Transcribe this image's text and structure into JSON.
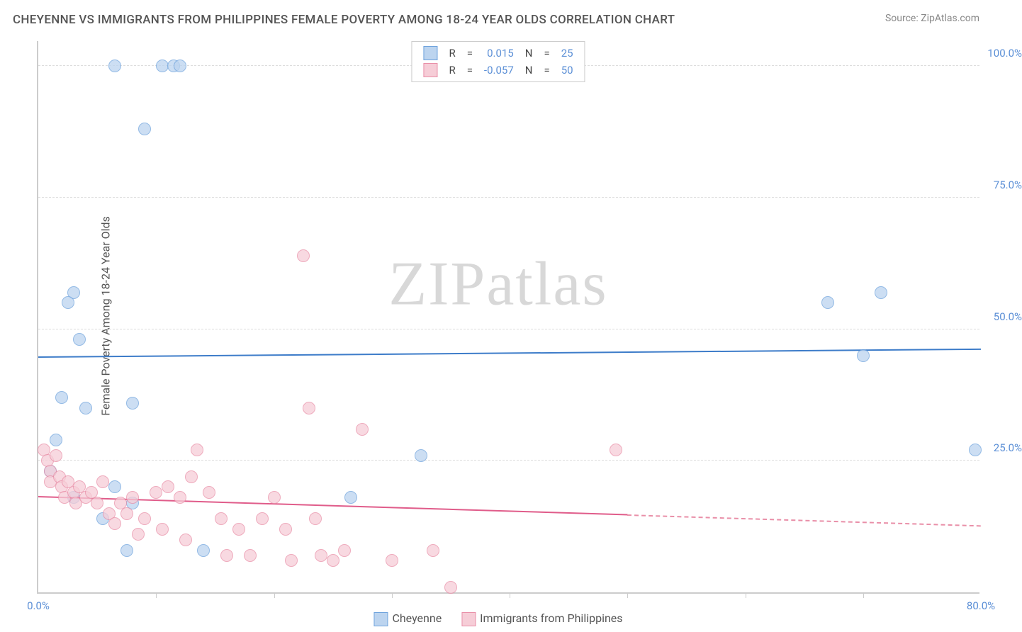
{
  "title": "CHEYENNE VS IMMIGRANTS FROM PHILIPPINES FEMALE POVERTY AMONG 18-24 YEAR OLDS CORRELATION CHART",
  "source": "Source: ZipAtlas.com",
  "ylabel": "Female Poverty Among 18-24 Year Olds",
  "watermark_a": "ZIP",
  "watermark_b": "atlas",
  "chart": {
    "type": "scatter",
    "xlim": [
      0,
      80
    ],
    "ylim": [
      0,
      105
    ],
    "xtick_labels": [
      {
        "v": 0,
        "label": "0.0%"
      },
      {
        "v": 80,
        "label": "80.0%"
      }
    ],
    "xtick_marks": [
      10,
      20,
      30,
      40,
      50,
      60,
      70
    ],
    "ytick_labels": [
      {
        "v": 25,
        "label": "25.0%"
      },
      {
        "v": 50,
        "label": "50.0%"
      },
      {
        "v": 75,
        "label": "75.0%"
      },
      {
        "v": 100,
        "label": "100.0%"
      }
    ],
    "grid_y": [
      25,
      50,
      75,
      100
    ],
    "grid_color": "#dddddd",
    "background_color": "#ffffff",
    "marker_size": 18,
    "series": [
      {
        "name": "Cheyenne",
        "color_fill": "#bcd4ef",
        "color_stroke": "#6fa3dd",
        "R": "0.015",
        "N": "25",
        "trend": {
          "y_at_x0": 44.5,
          "y_at_x80": 46.0,
          "solid_until_x": 80,
          "color": "#3d7cc9"
        },
        "points": [
          {
            "x": 6.5,
            "y": 100
          },
          {
            "x": 10.5,
            "y": 100
          },
          {
            "x": 11.5,
            "y": 100
          },
          {
            "x": 12.0,
            "y": 100
          },
          {
            "x": 9.0,
            "y": 88
          },
          {
            "x": 3.0,
            "y": 57
          },
          {
            "x": 2.5,
            "y": 55
          },
          {
            "x": 3.5,
            "y": 48
          },
          {
            "x": 2.0,
            "y": 37
          },
          {
            "x": 4.0,
            "y": 35
          },
          {
            "x": 8.0,
            "y": 36
          },
          {
            "x": 1.5,
            "y": 29
          },
          {
            "x": 1.0,
            "y": 23
          },
          {
            "x": 6.5,
            "y": 20
          },
          {
            "x": 8.0,
            "y": 17
          },
          {
            "x": 7.5,
            "y": 8
          },
          {
            "x": 14.0,
            "y": 8
          },
          {
            "x": 26.5,
            "y": 18
          },
          {
            "x": 32.5,
            "y": 26
          },
          {
            "x": 67.0,
            "y": 55
          },
          {
            "x": 71.5,
            "y": 57
          },
          {
            "x": 70.0,
            "y": 45
          },
          {
            "x": 79.5,
            "y": 27
          },
          {
            "x": 5.5,
            "y": 14
          },
          {
            "x": 3.0,
            "y": 18
          }
        ]
      },
      {
        "name": "Immigrants from Philippines",
        "color_fill": "#f6cdd7",
        "color_stroke": "#e98fa8",
        "R": "-0.057",
        "N": "50",
        "trend": {
          "y_at_x0": 18.0,
          "y_at_x80": 12.5,
          "solid_until_x": 50,
          "color": "#e05c8a"
        },
        "points": [
          {
            "x": 0.5,
            "y": 27
          },
          {
            "x": 0.8,
            "y": 25
          },
          {
            "x": 1.0,
            "y": 23
          },
          {
            "x": 1.0,
            "y": 21
          },
          {
            "x": 1.5,
            "y": 26
          },
          {
            "x": 1.8,
            "y": 22
          },
          {
            "x": 2.0,
            "y": 20
          },
          {
            "x": 2.2,
            "y": 18
          },
          {
            "x": 2.5,
            "y": 21
          },
          {
            "x": 3.0,
            "y": 19
          },
          {
            "x": 3.2,
            "y": 17
          },
          {
            "x": 3.5,
            "y": 20
          },
          {
            "x": 4.0,
            "y": 18
          },
          {
            "x": 4.5,
            "y": 19
          },
          {
            "x": 5.0,
            "y": 17
          },
          {
            "x": 5.5,
            "y": 21
          },
          {
            "x": 6.0,
            "y": 15
          },
          {
            "x": 6.5,
            "y": 13
          },
          {
            "x": 7.0,
            "y": 17
          },
          {
            "x": 7.5,
            "y": 15
          },
          {
            "x": 8.0,
            "y": 18
          },
          {
            "x": 8.5,
            "y": 11
          },
          {
            "x": 9.0,
            "y": 14
          },
          {
            "x": 10.0,
            "y": 19
          },
          {
            "x": 10.5,
            "y": 12
          },
          {
            "x": 11.0,
            "y": 20
          },
          {
            "x": 12.0,
            "y": 18
          },
          {
            "x": 12.5,
            "y": 10
          },
          {
            "x": 13.0,
            "y": 22
          },
          {
            "x": 13.5,
            "y": 27
          },
          {
            "x": 14.5,
            "y": 19
          },
          {
            "x": 15.5,
            "y": 14
          },
          {
            "x": 16.0,
            "y": 7
          },
          {
            "x": 17.0,
            "y": 12
          },
          {
            "x": 18.0,
            "y": 7
          },
          {
            "x": 19.0,
            "y": 14
          },
          {
            "x": 20.0,
            "y": 18
          },
          {
            "x": 21.0,
            "y": 12
          },
          {
            "x": 21.5,
            "y": 6
          },
          {
            "x": 23.0,
            "y": 35
          },
          {
            "x": 23.5,
            "y": 14
          },
          {
            "x": 24.0,
            "y": 7
          },
          {
            "x": 25.0,
            "y": 6
          },
          {
            "x": 26.0,
            "y": 8
          },
          {
            "x": 27.5,
            "y": 31
          },
          {
            "x": 22.5,
            "y": 64
          },
          {
            "x": 30.0,
            "y": 6
          },
          {
            "x": 33.5,
            "y": 8
          },
          {
            "x": 35.0,
            "y": 1
          },
          {
            "x": 49.0,
            "y": 27
          }
        ]
      }
    ]
  },
  "legend_top_labels": {
    "R": "R",
    "eq": "=",
    "N": "N"
  },
  "legend_bottom": [
    {
      "label": "Cheyenne",
      "fill": "#bcd4ef",
      "stroke": "#6fa3dd"
    },
    {
      "label": "Immigrants from Philippines",
      "fill": "#f6cdd7",
      "stroke": "#e98fa8"
    }
  ]
}
